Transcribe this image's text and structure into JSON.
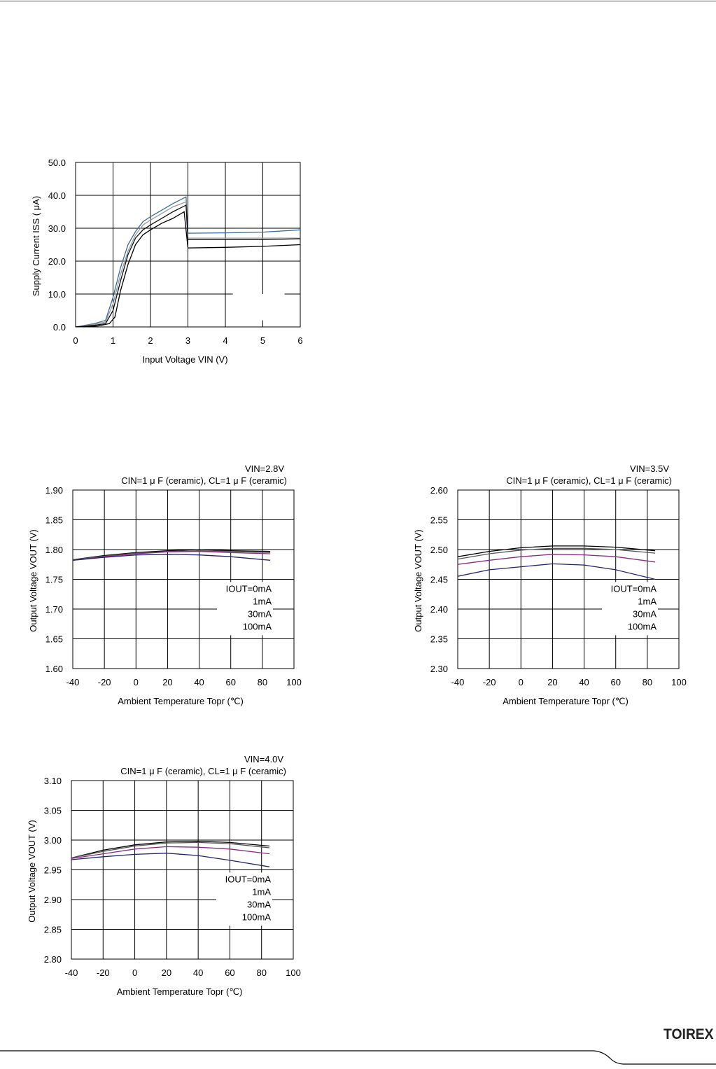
{
  "brand": {
    "logo_text": "TOIREX"
  },
  "chart_data": [
    {
      "type": "line",
      "title": "",
      "subtitle": "",
      "xlabel": "Input Voltage VIN (V)",
      "ylabel": "Supply Current ISS ( μA)",
      "xlim": [
        0,
        6
      ],
      "ylim": [
        0,
        50
      ],
      "x_ticks": [
        "0",
        "1",
        "2",
        "3",
        "4",
        "5",
        "6"
      ],
      "y_ticks": [
        "0.0",
        "10.0",
        "20.0",
        "30.0",
        "40.0",
        "50.0"
      ],
      "grid": true,
      "legend": [],
      "series": [
        {
          "color": "#3a6d9a",
          "points": [
            [
              0,
              0
            ],
            [
              0.5,
              1
            ],
            [
              0.8,
              2
            ],
            [
              1.0,
              9
            ],
            [
              1.2,
              18
            ],
            [
              1.4,
              25
            ],
            [
              1.6,
              29
            ],
            [
              1.8,
              32
            ],
            [
              2.0,
              33.5
            ],
            [
              2.3,
              35.5
            ],
            [
              2.6,
              37.5
            ],
            [
              2.95,
              39.5
            ],
            [
              3.0,
              28.5
            ],
            [
              4.0,
              28.6
            ],
            [
              5.0,
              28.8
            ],
            [
              6.0,
              29.5
            ]
          ]
        },
        {
          "color": "#9a9a9a",
          "points": [
            [
              0,
              0
            ],
            [
              0.5,
              0.8
            ],
            [
              0.8,
              1.5
            ],
            [
              1.0,
              7
            ],
            [
              1.2,
              16
            ],
            [
              1.4,
              23
            ],
            [
              1.6,
              28
            ],
            [
              1.8,
              31
            ],
            [
              2.0,
              32.5
            ],
            [
              2.3,
              34.5
            ],
            [
              2.6,
              36.5
            ],
            [
              2.95,
              38
            ],
            [
              3.0,
              27
            ],
            [
              4.0,
              27
            ],
            [
              5.0,
              27
            ],
            [
              6.0,
              27
            ]
          ]
        },
        {
          "color": "#111111",
          "points": [
            [
              0,
              0
            ],
            [
              0.5,
              0.5
            ],
            [
              0.8,
              1
            ],
            [
              1.0,
              5
            ],
            [
              1.2,
              14
            ],
            [
              1.4,
              22
            ],
            [
              1.6,
              27
            ],
            [
              1.8,
              29.5
            ],
            [
              2.0,
              31
            ],
            [
              2.3,
              33
            ],
            [
              2.6,
              35
            ],
            [
              2.95,
              37
            ],
            [
              3.0,
              26.5
            ],
            [
              4.0,
              26.5
            ],
            [
              5.0,
              26.5
            ],
            [
              6.0,
              26.8
            ]
          ]
        },
        {
          "color": "#000000",
          "points": [
            [
              0,
              0
            ],
            [
              0.6,
              0.3
            ],
            [
              0.9,
              1
            ],
            [
              1.05,
              3
            ],
            [
              1.2,
              11
            ],
            [
              1.4,
              19
            ],
            [
              1.6,
              25
            ],
            [
              1.8,
              28
            ],
            [
              2.0,
              29.5
            ],
            [
              2.3,
              31.5
            ],
            [
              2.6,
              33
            ],
            [
              2.9,
              35
            ],
            [
              3.0,
              24
            ],
            [
              4.0,
              24.2
            ],
            [
              5.0,
              24.5
            ],
            [
              6.0,
              25
            ]
          ]
        }
      ]
    },
    {
      "type": "line",
      "title": "VIN=2.8V",
      "subtitle": "CIN=1 μ F (ceramic), CL=1 μ F (ceramic)",
      "xlabel": "Ambient Temperature Topr (℃)",
      "ylabel": "Output Voltage VOUT (V)",
      "xlim": [
        -40,
        100
      ],
      "ylim": [
        1.6,
        1.9
      ],
      "x_ticks": [
        "-40",
        "-20",
        "0",
        "20",
        "40",
        "60",
        "80",
        "100"
      ],
      "y_ticks": [
        "1.60",
        "1.65",
        "1.70",
        "1.75",
        "1.80",
        "1.85",
        "1.90"
      ],
      "grid": true,
      "legend": [
        "IOUT=0mA",
        "1mA",
        "30mA",
        "100mA"
      ],
      "series": [
        {
          "color": "#000000",
          "points": [
            [
              -40,
              1.783
            ],
            [
              -20,
              1.79
            ],
            [
              0,
              1.795
            ],
            [
              20,
              1.798
            ],
            [
              40,
              1.8
            ],
            [
              60,
              1.798
            ],
            [
              85,
              1.797
            ]
          ]
        },
        {
          "color": "#555555",
          "points": [
            [
              -40,
              1.783
            ],
            [
              -20,
              1.789
            ],
            [
              0,
              1.794
            ],
            [
              20,
              1.797
            ],
            [
              40,
              1.798
            ],
            [
              60,
              1.797
            ],
            [
              85,
              1.795
            ]
          ]
        },
        {
          "color": "#8b2a84",
          "points": [
            [
              -40,
              1.782
            ],
            [
              -20,
              1.788
            ],
            [
              0,
              1.793
            ],
            [
              20,
              1.796
            ],
            [
              40,
              1.797
            ],
            [
              60,
              1.795
            ],
            [
              85,
              1.793
            ]
          ]
        },
        {
          "color": "#23236e",
          "points": [
            [
              -40,
              1.782
            ],
            [
              -20,
              1.787
            ],
            [
              0,
              1.791
            ],
            [
              20,
              1.792
            ],
            [
              40,
              1.791
            ],
            [
              60,
              1.788
            ],
            [
              85,
              1.782
            ]
          ]
        }
      ]
    },
    {
      "type": "line",
      "title": "VIN=3.5V",
      "subtitle": "CIN=1 μ F (ceramic), CL=1 μ F (ceramic)",
      "xlabel": "Ambient Temperature Topr (℃)",
      "ylabel": "Output Voltage VOUT (V)",
      "xlim": [
        -40,
        100
      ],
      "ylim": [
        2.3,
        2.6
      ],
      "x_ticks": [
        "-40",
        "-20",
        "0",
        "20",
        "40",
        "60",
        "80",
        "100"
      ],
      "y_ticks": [
        "2.30",
        "2.35",
        "2.40",
        "2.45",
        "2.50",
        "2.55",
        "2.60"
      ],
      "grid": true,
      "legend": [
        "IOUT=0mA",
        "1mA",
        "30mA",
        "100mA"
      ],
      "series": [
        {
          "color": "#000000",
          "points": [
            [
              -40,
              2.488
            ],
            [
              -20,
              2.497
            ],
            [
              0,
              2.503
            ],
            [
              20,
              2.506
            ],
            [
              40,
              2.506
            ],
            [
              60,
              2.504
            ],
            [
              85,
              2.498
            ]
          ]
        },
        {
          "color": "#555555",
          "points": [
            [
              -40,
              2.484
            ],
            [
              -20,
              2.493
            ],
            [
              0,
              2.499
            ],
            [
              20,
              2.502
            ],
            [
              40,
              2.502
            ],
            [
              60,
              2.5
            ],
            [
              85,
              2.494
            ]
          ]
        },
        {
          "color": "#8b2a84",
          "points": [
            [
              -40,
              2.475
            ],
            [
              -20,
              2.482
            ],
            [
              0,
              2.488
            ],
            [
              20,
              2.492
            ],
            [
              40,
              2.491
            ],
            [
              60,
              2.488
            ],
            [
              85,
              2.479
            ]
          ]
        },
        {
          "color": "#23236e",
          "points": [
            [
              -40,
              2.455
            ],
            [
              -20,
              2.466
            ],
            [
              0,
              2.471
            ],
            [
              20,
              2.476
            ],
            [
              40,
              2.474
            ],
            [
              60,
              2.466
            ],
            [
              85,
              2.45
            ]
          ]
        }
      ]
    },
    {
      "type": "line",
      "title": "VIN=4.0V",
      "subtitle": "CIN=1 μ F (ceramic), CL=1 μ F (ceramic)",
      "xlabel": "Ambient Temperature Topr (℃)",
      "ylabel": "Output Voltage VOUT (V)",
      "xlim": [
        -40,
        100
      ],
      "ylim": [
        2.8,
        3.1
      ],
      "x_ticks": [
        "-40",
        "-20",
        "0",
        "20",
        "40",
        "60",
        "80",
        "100"
      ],
      "y_ticks": [
        "2.80",
        "2.85",
        "2.90",
        "2.95",
        "3.00",
        "3.05",
        "3.10"
      ],
      "grid": true,
      "legend": [
        "IOUT=0mA",
        "1mA",
        "30mA",
        "100mA"
      ],
      "series": [
        {
          "color": "#000000",
          "points": [
            [
              -40,
              2.97
            ],
            [
              -20,
              2.983
            ],
            [
              0,
              2.992
            ],
            [
              20,
              2.997
            ],
            [
              40,
              2.998
            ],
            [
              60,
              2.996
            ],
            [
              85,
              2.99
            ]
          ]
        },
        {
          "color": "#555555",
          "points": [
            [
              -40,
              2.97
            ],
            [
              -20,
              2.981
            ],
            [
              0,
              2.99
            ],
            [
              20,
              2.995
            ],
            [
              40,
              2.996
            ],
            [
              60,
              2.994
            ],
            [
              85,
              2.987
            ]
          ]
        },
        {
          "color": "#8b2a84",
          "points": [
            [
              -40,
              2.969
            ],
            [
              -20,
              2.977
            ],
            [
              0,
              2.985
            ],
            [
              20,
              2.989
            ],
            [
              40,
              2.988
            ],
            [
              60,
              2.985
            ],
            [
              85,
              2.977
            ]
          ]
        },
        {
          "color": "#23236e",
          "points": [
            [
              -40,
              2.967
            ],
            [
              -20,
              2.972
            ],
            [
              0,
              2.976
            ],
            [
              20,
              2.978
            ],
            [
              40,
              2.974
            ],
            [
              60,
              2.966
            ],
            [
              85,
              2.955
            ]
          ]
        }
      ]
    }
  ]
}
